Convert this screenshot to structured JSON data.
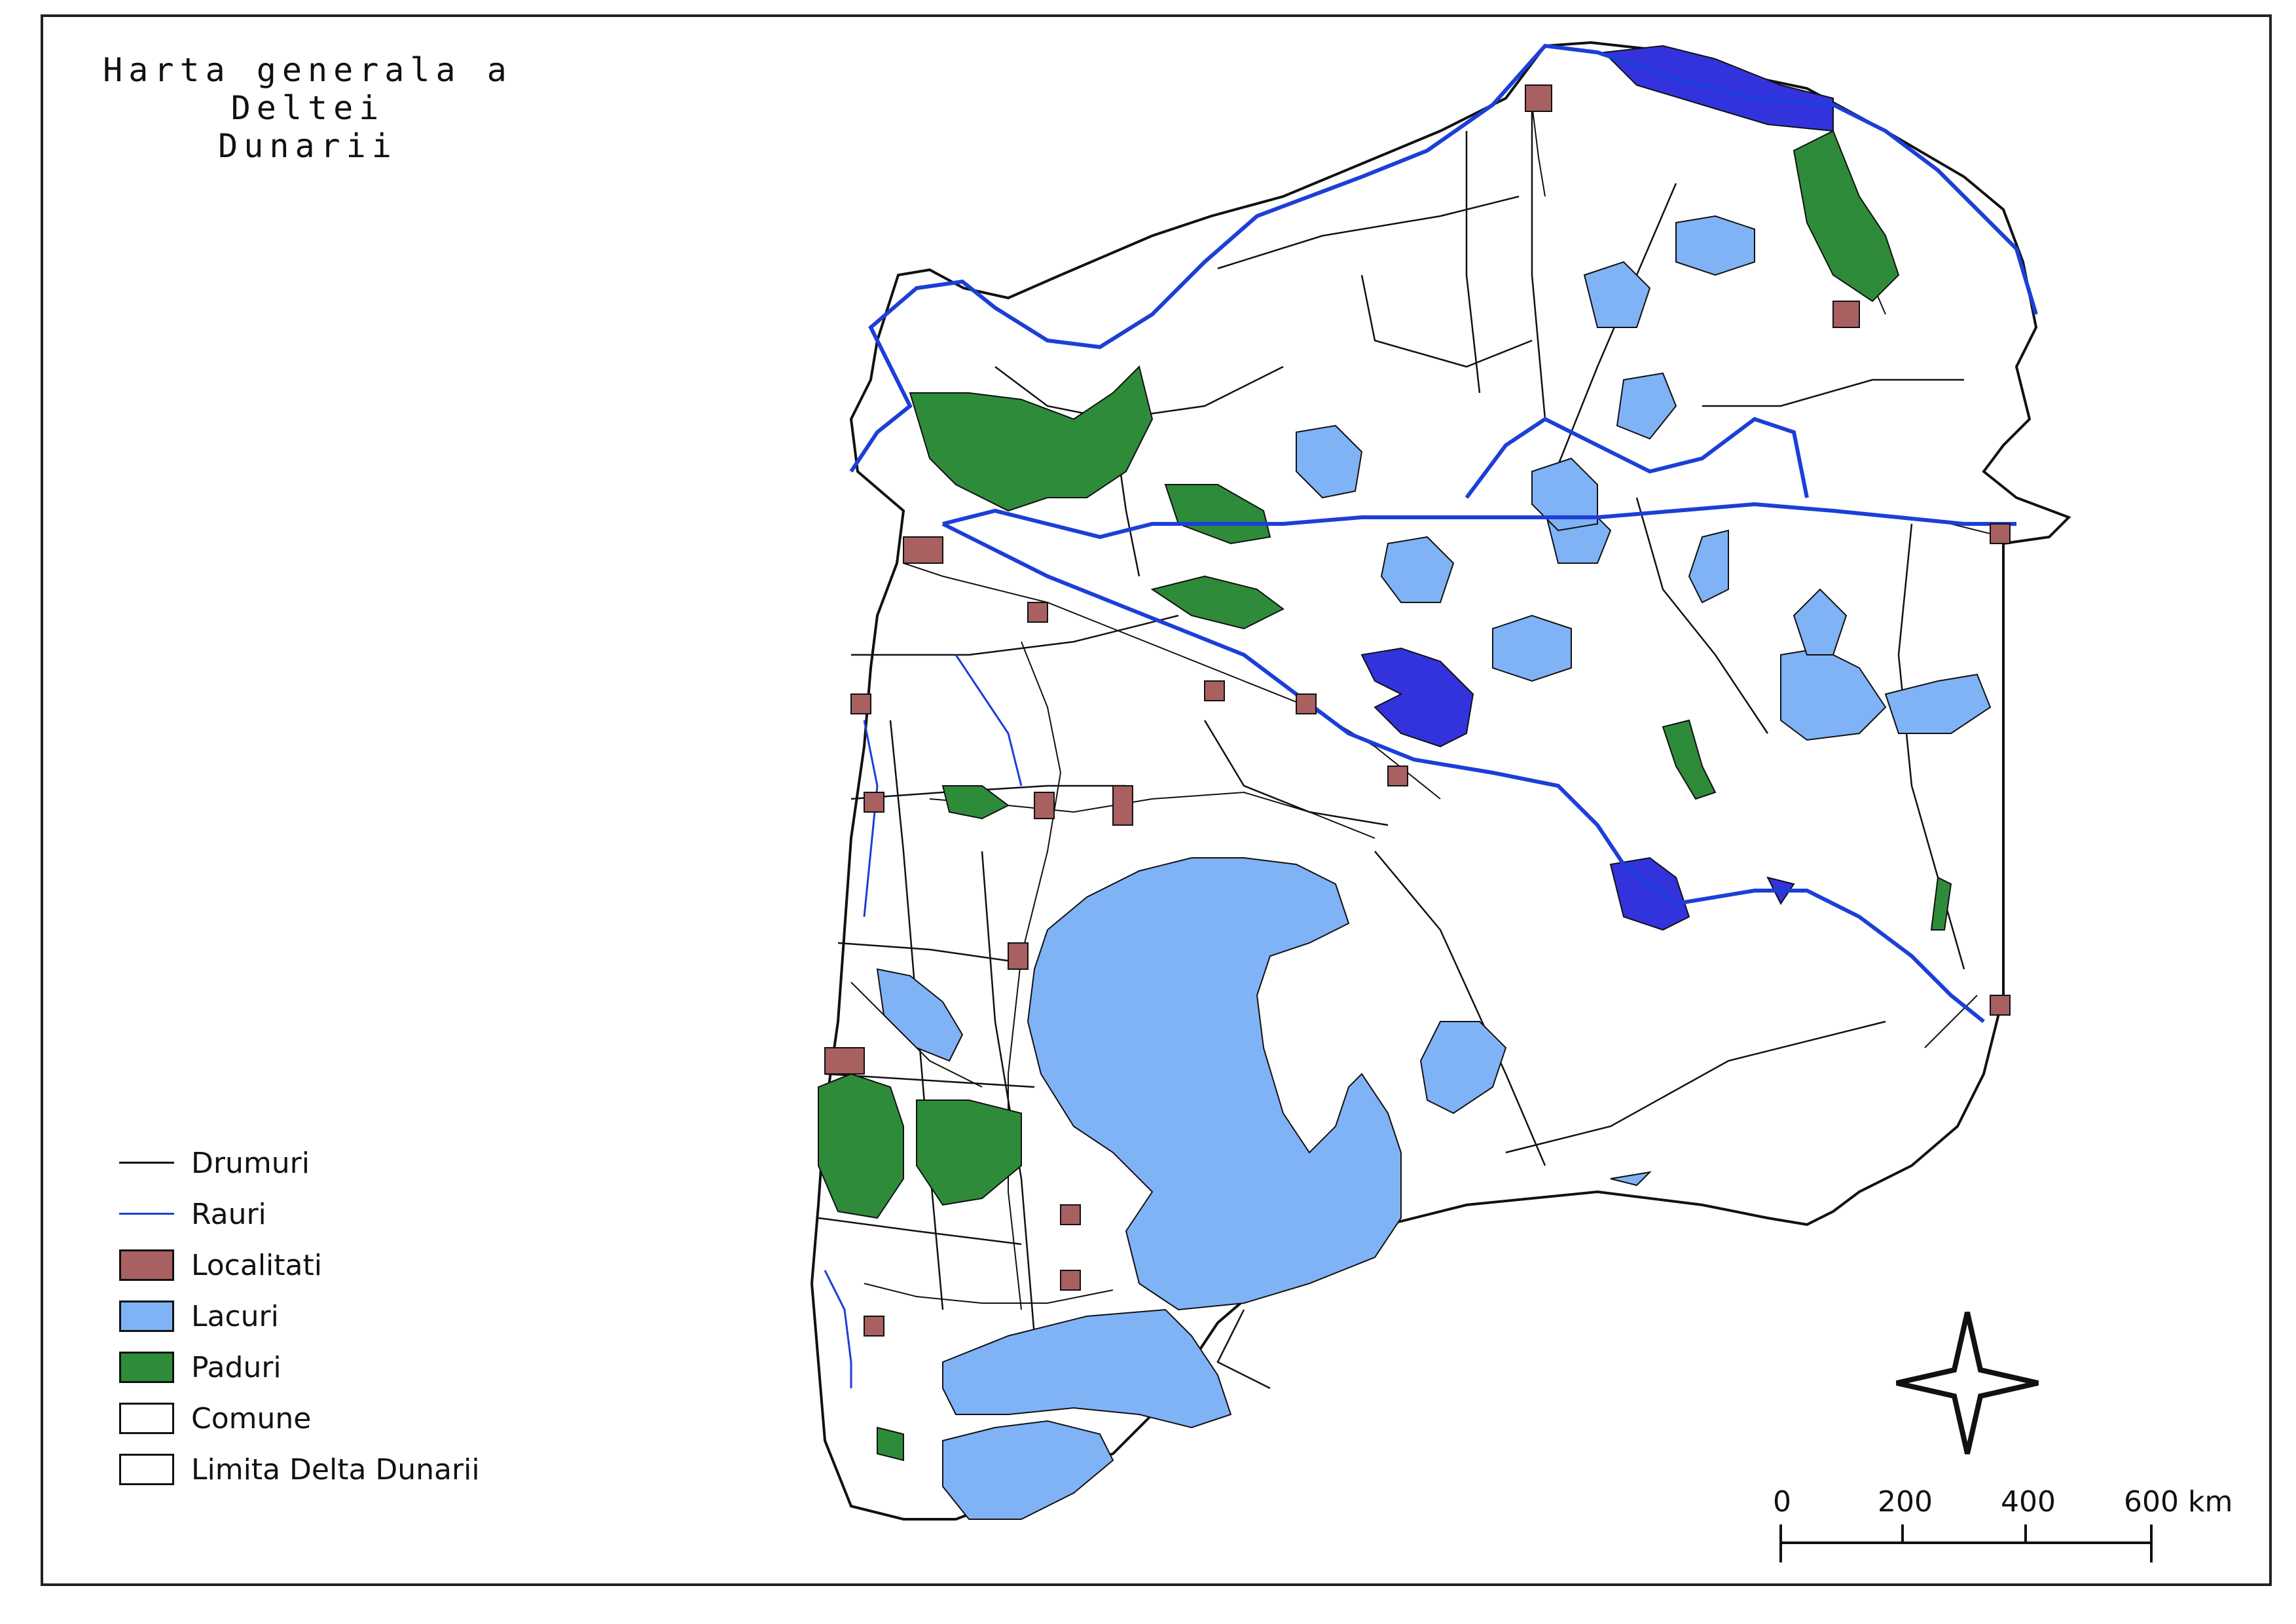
{
  "map": {
    "title_line1": "Harta generala a Deltei",
    "title_line2": "Dunarii",
    "colors": {
      "lake": "#80b2f6",
      "deep_water": "#3333dd",
      "forest": "#2e8b3a",
      "settlement": "#a86060",
      "river": "#1c3fd6",
      "road": "#111111",
      "commune": "#ffffff"
    }
  },
  "legend": {
    "items": [
      {
        "label": "Drumuri",
        "kind": "line",
        "color": "#111111"
      },
      {
        "label": "Rauri",
        "kind": "line",
        "color": "#1c3fd6"
      },
      {
        "label": "Localitati",
        "kind": "fill",
        "color": "#a86060"
      },
      {
        "label": "Lacuri",
        "kind": "fill",
        "color": "#80b2f6"
      },
      {
        "label": "Paduri",
        "kind": "fill",
        "color": "#2e8b3a"
      },
      {
        "label": "Comune",
        "kind": "fill",
        "color": "#ffffff"
      },
      {
        "label": "Limita Delta Dunarii",
        "kind": "fill",
        "color": "#ffffff"
      }
    ]
  },
  "scale_bar": {
    "ticks": [
      "0",
      "200",
      "400",
      "600 km"
    ]
  },
  "north_arrow": {
    "icon": "compass-star-icon"
  }
}
